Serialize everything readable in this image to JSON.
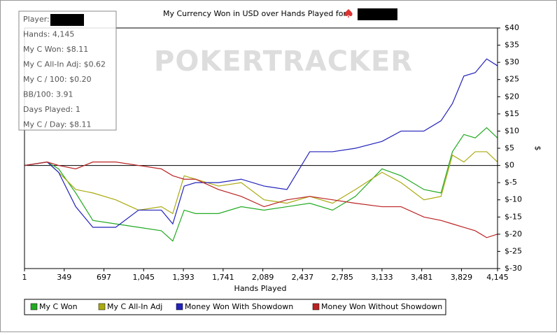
{
  "chart_data": {
    "type": "line",
    "title": "My Currency Won in USD over Hands Played for",
    "watermark": "POKERTRACKER",
    "x_label": "Hands Played",
    "y_label": "$",
    "xlim": [
      1,
      4145
    ],
    "ylim": [
      -30,
      40
    ],
    "xticks": [
      1,
      349,
      697,
      {
        "value": 1045,
        "label": "1,045"
      },
      {
        "value": 1393,
        "label": "1,393"
      },
      {
        "value": 1741,
        "label": "1,741"
      },
      {
        "value": 2089,
        "label": "2,089"
      },
      {
        "value": 2437,
        "label": "2,437"
      },
      {
        "value": 2785,
        "label": "2,785"
      },
      {
        "value": 3133,
        "label": "3,133"
      },
      {
        "value": 3481,
        "label": "3,481"
      },
      {
        "value": 3829,
        "label": "3,829"
      },
      {
        "value": 4145,
        "label": "4,145"
      }
    ],
    "yticks": [
      {
        "value": 40,
        "label": "$40"
      },
      {
        "value": 35,
        "label": "$35"
      },
      {
        "value": 30,
        "label": "$30"
      },
      {
        "value": 25,
        "label": "$25"
      },
      {
        "value": 20,
        "label": "$20"
      },
      {
        "value": 15,
        "label": "$15"
      },
      {
        "value": 10,
        "label": "$10"
      },
      {
        "value": 5,
        "label": "$5"
      },
      {
        "value": 0,
        "label": "$0"
      },
      {
        "value": -5,
        "label": "$-5"
      },
      {
        "value": -10,
        "label": "$-10"
      },
      {
        "value": -15,
        "label": "$-15"
      },
      {
        "value": -20,
        "label": "$-20"
      },
      {
        "value": -25,
        "label": "$-25"
      },
      {
        "value": -30,
        "label": "$-30"
      }
    ],
    "x": [
      1,
      200,
      300,
      450,
      600,
      800,
      1000,
      1200,
      1300,
      1400,
      1500,
      1700,
      1900,
      2100,
      2300,
      2500,
      2700,
      2900,
      3133,
      3300,
      3500,
      3650,
      3750,
      3850,
      3950,
      4050,
      4145
    ],
    "series": [
      {
        "name": "My C Won",
        "color": "#22aa22",
        "values": [
          0,
          1,
          -1,
          -8,
          -16,
          -17,
          -18,
          -19,
          -22,
          -13,
          -14,
          -14,
          -12,
          -13,
          -12,
          -11,
          -13,
          -9,
          -1,
          -3,
          -7,
          -8,
          4,
          9,
          8,
          11,
          8
        ]
      },
      {
        "name": "My C All-In Adj",
        "color": "#aaaa11",
        "values": [
          0,
          1,
          -2,
          -7,
          -8,
          -10,
          -13,
          -12,
          -14,
          -3,
          -4,
          -6,
          -5,
          -10,
          -11,
          -9,
          -11,
          -7,
          -2,
          -5,
          -10,
          -9,
          3,
          1,
          4,
          4,
          1
        ]
      },
      {
        "name": "Money Won With Showdown",
        "color": "#2222bb",
        "values": [
          0,
          1,
          -2,
          -12,
          -18,
          -18,
          -13,
          -13,
          -17,
          -6,
          -5,
          -5,
          -4,
          -6,
          -7,
          4,
          4,
          5,
          7,
          10,
          10,
          13,
          18,
          26,
          27,
          31,
          29
        ]
      },
      {
        "name": "Money Won Without Showdown",
        "color": "#bb2222",
        "values": [
          0,
          1,
          0,
          -1,
          1,
          1,
          0,
          -1,
          -3,
          -4,
          -4,
          -7,
          -9,
          -12,
          -10,
          -9,
          -10,
          -11,
          -12,
          -12,
          -15,
          -16,
          -17,
          -18,
          -19,
          -21,
          -20
        ]
      }
    ]
  },
  "info_box": {
    "lines": [
      "Player:",
      "Hands: 4,145",
      "My C Won: $8.11",
      "My C All-In Adj: $0.62",
      "My C / 100: $0.20",
      "BB/100: 3.91",
      "Days Played: 1",
      "My C / Day: $8.11"
    ]
  }
}
